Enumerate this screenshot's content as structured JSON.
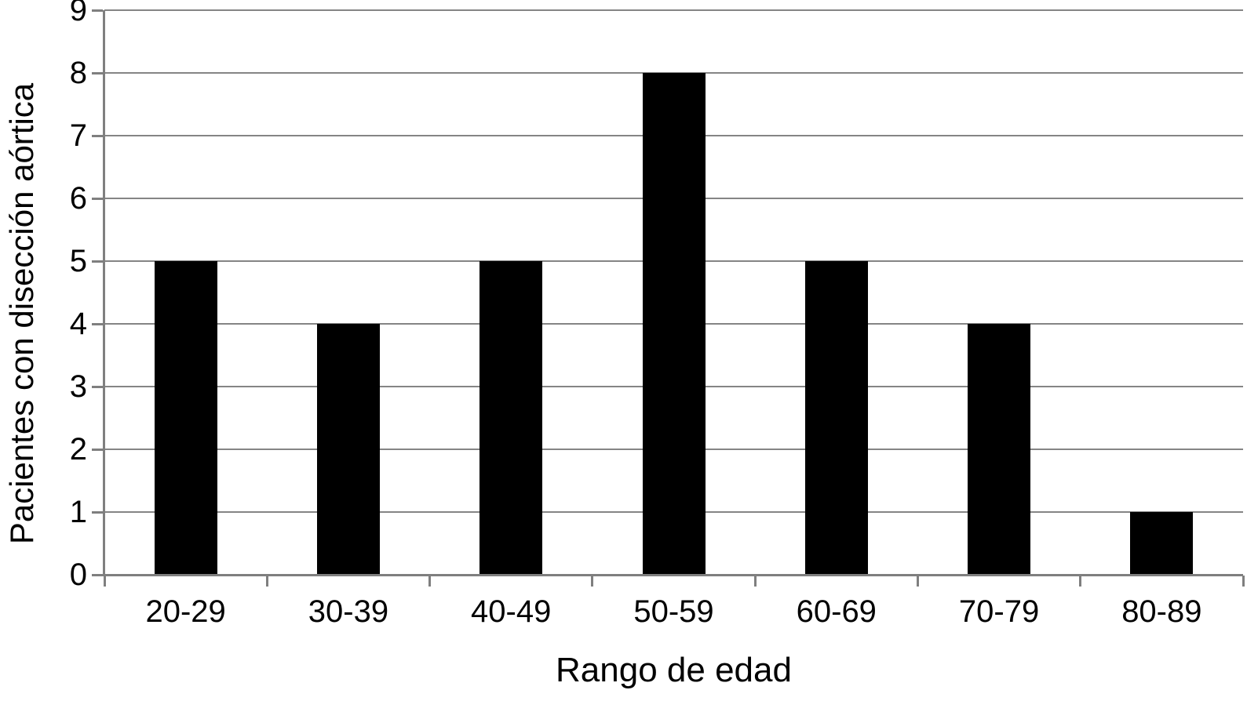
{
  "chart_data": {
    "type": "bar",
    "categories": [
      "20-29",
      "30-39",
      "40-49",
      "50-59",
      "60-69",
      "70-79",
      "80-89"
    ],
    "values": [
      5,
      4,
      5,
      8,
      5,
      4,
      1
    ],
    "title": "",
    "xlabel": "Rango de edad",
    "ylabel": "Pacientes con disección aórtica",
    "ylim": [
      0,
      9
    ],
    "yticks": [
      0,
      1,
      2,
      3,
      4,
      5,
      6,
      7,
      8,
      9
    ],
    "grid": "horizontal-only",
    "legend": "none",
    "bar_color": "#000000",
    "grid_color": "#858585",
    "axis_color": "#7f7f7f",
    "text_color": "#000000",
    "background_color": "#ffffff"
  }
}
